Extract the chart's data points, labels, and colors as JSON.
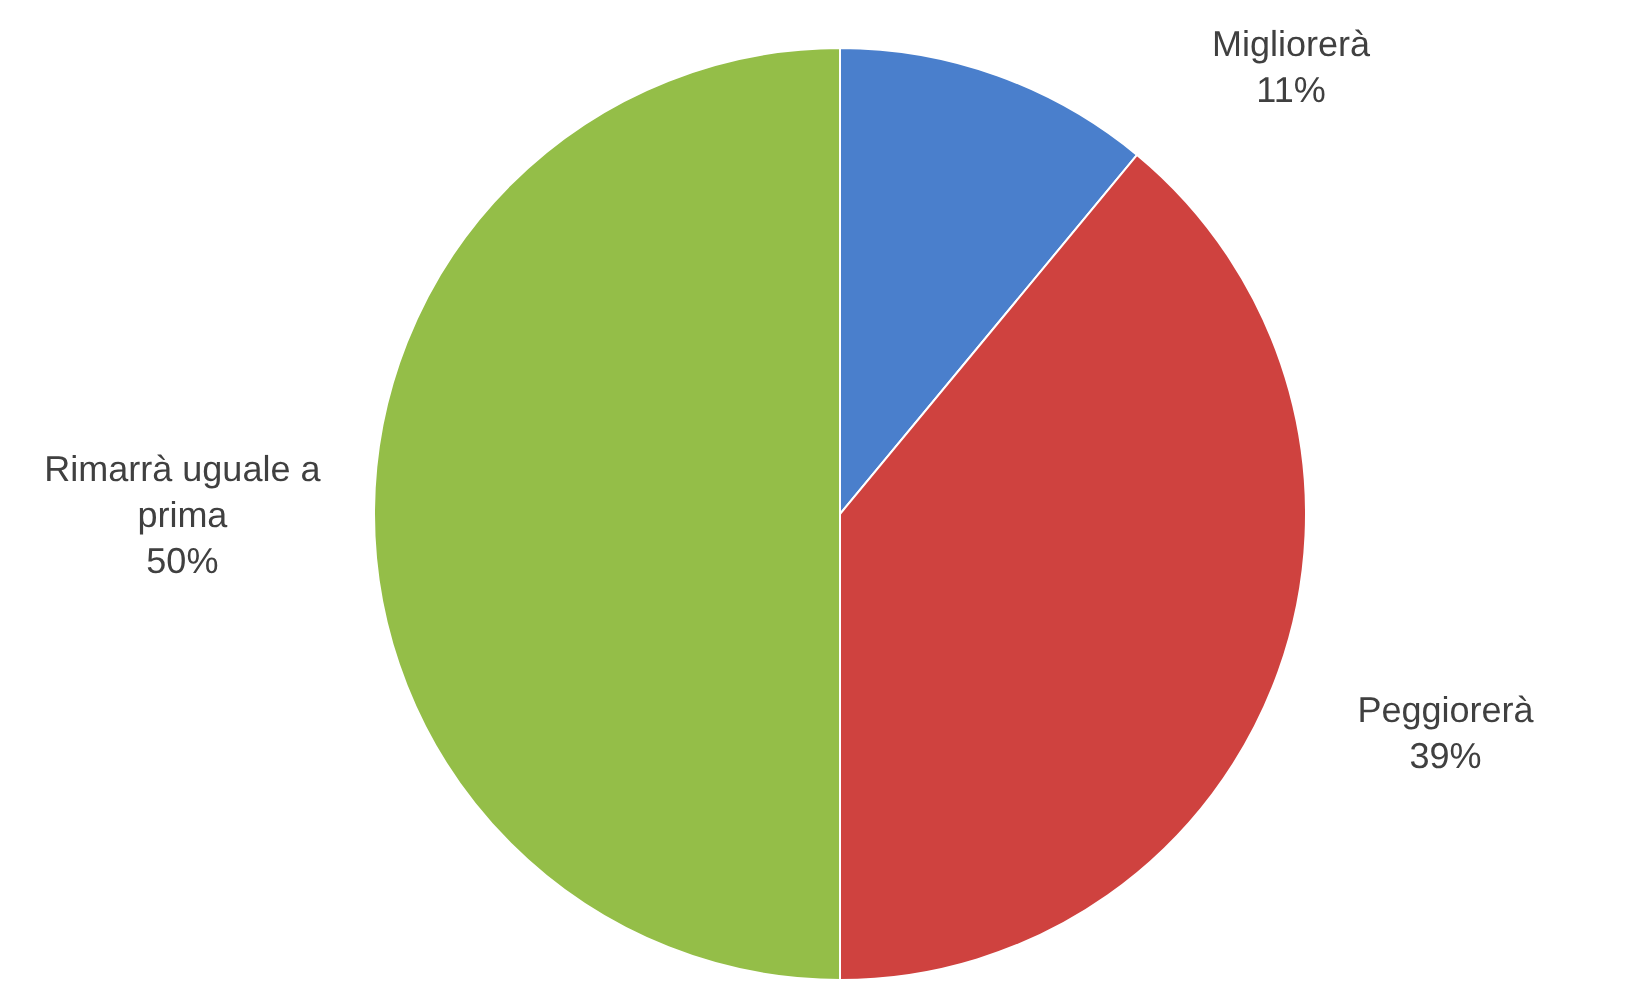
{
  "chart_data": {
    "type": "pie",
    "categories": [
      "Migliorerà",
      "Peggiorerà",
      "Rimarrà uguale a prima"
    ],
    "values": [
      11,
      39,
      50
    ],
    "value_labels": [
      "11%",
      "39%",
      "50%"
    ],
    "colors": [
      "#4a7fcc",
      "#cf423f",
      "#94be48"
    ],
    "legend": false
  }
}
